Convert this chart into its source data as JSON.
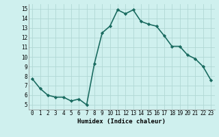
{
  "x": [
    0,
    1,
    2,
    3,
    4,
    5,
    6,
    7,
    8,
    9,
    10,
    11,
    12,
    13,
    14,
    15,
    16,
    17,
    18,
    19,
    20,
    21,
    22,
    23
  ],
  "y": [
    7.7,
    6.7,
    6.0,
    5.8,
    5.8,
    5.4,
    5.6,
    5.0,
    9.3,
    12.5,
    13.2,
    14.9,
    14.5,
    14.9,
    13.7,
    13.4,
    13.2,
    12.2,
    11.1,
    11.1,
    10.2,
    9.8,
    9.0,
    7.6
  ],
  "xlim": [
    -0.5,
    23.5
  ],
  "ylim": [
    4.5,
    15.5
  ],
  "yticks": [
    5,
    6,
    7,
    8,
    9,
    10,
    11,
    12,
    13,
    14,
    15
  ],
  "xticks": [
    0,
    1,
    2,
    3,
    4,
    5,
    6,
    7,
    8,
    9,
    10,
    11,
    12,
    13,
    14,
    15,
    16,
    17,
    18,
    19,
    20,
    21,
    22,
    23
  ],
  "xlabel": "Humidex (Indice chaleur)",
  "line_color": "#1a6b60",
  "marker": "D",
  "marker_size": 2.2,
  "bg_color": "#cff0ee",
  "grid_color": "#b0d8d4",
  "line_width": 1.2,
  "tick_fontsize": 5.5,
  "xlabel_fontsize": 6.5
}
